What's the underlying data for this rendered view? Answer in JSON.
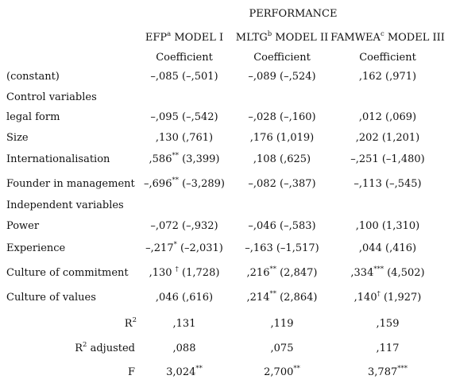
{
  "table": {
    "super_header": "PERFORMANCE",
    "columns": [
      {
        "pre": "EFP",
        "sup": "a",
        "post": " MODEL I",
        "sub": "Coefficient"
      },
      {
        "pre": "MLTG",
        "sup": "b",
        "post": " MODEL II",
        "sub": "Coefficient"
      },
      {
        "pre": "FAMWEA",
        "sup": "c",
        "post": " MODEL III",
        "sub": "Coefficient"
      }
    ],
    "rows": [
      {
        "label": "(constant)",
        "cells": [
          {
            "v": "–,085",
            "s": "",
            "t": " (–,501)"
          },
          {
            "v": "–,089",
            "s": "",
            "t": " (–,524)"
          },
          {
            "v": ",162",
            "s": "",
            "t": " (,971)"
          }
        ]
      },
      {
        "label": "Control variables",
        "cells": []
      },
      {
        "label": "legal form",
        "cells": [
          {
            "v": "–,095",
            "s": "",
            "t": " (–,542)"
          },
          {
            "v": "–,028",
            "s": "",
            "t": " (–,160)"
          },
          {
            "v": ",012",
            "s": "",
            "t": " (,069)"
          }
        ]
      },
      {
        "label": "Size",
        "cells": [
          {
            "v": ",130",
            "s": "",
            "t": " (,761)"
          },
          {
            "v": ",176",
            "s": "",
            "t": " (1,019)"
          },
          {
            "v": ",202",
            "s": "",
            "t": " (1,201)"
          }
        ]
      },
      {
        "label": "Internationalisation",
        "cells": [
          {
            "v": ",586",
            "s": "**",
            "t": " (3,399)"
          },
          {
            "v": ",108",
            "s": "",
            "t": " (,625)"
          },
          {
            "v": "–,251",
            "s": "",
            "t": " (–1,480)"
          }
        ]
      },
      {
        "label": "Founder in management",
        "cells": [
          {
            "v": "–,696",
            "s": "**",
            "t": " (–3,289)"
          },
          {
            "v": "–,082",
            "s": "",
            "t": " (–,387)"
          },
          {
            "v": "–,113",
            "s": "",
            "t": " (–,545)"
          }
        ]
      },
      {
        "label": "Independent variables",
        "cells": []
      },
      {
        "label": "Power",
        "cells": [
          {
            "v": "–,072",
            "s": "",
            "t": " (–,932)"
          },
          {
            "v": "–,046",
            "s": "",
            "t": " (–,583)"
          },
          {
            "v": ",100",
            "s": "",
            "t": " (1,310)"
          }
        ]
      },
      {
        "label": "Experience",
        "cells": [
          {
            "v": "–,217",
            "s": "*",
            "t": " (–2,031)"
          },
          {
            "v": "–,163",
            "s": "",
            "t": " (–1,517)"
          },
          {
            "v": ",044",
            "s": "",
            "t": " (,416)"
          }
        ]
      },
      {
        "label": "Culture of commitment",
        "cells": [
          {
            "v": ",130 ",
            "s": "†",
            "t": " (1,728)"
          },
          {
            "v": ",216",
            "s": "**",
            "t": " (2,847)"
          },
          {
            "v": ",334",
            "s": "***",
            "t": " (4,502)"
          }
        ]
      },
      {
        "label": "Culture of values",
        "cells": [
          {
            "v": ",046",
            "s": "",
            "t": " (,616)"
          },
          {
            "v": ",214",
            "s": "**",
            "t": " (2,864)"
          },
          {
            "v": ",140",
            "s": "†",
            "t": " (1,927)"
          }
        ]
      }
    ],
    "stats": [
      {
        "pre": "R",
        "sup": "2",
        "post": "",
        "cells": [
          {
            "v": ",131",
            "s": ""
          },
          {
            "v": ",119",
            "s": ""
          },
          {
            "v": ",159",
            "s": ""
          }
        ]
      },
      {
        "pre": "R",
        "sup": "2",
        "post": " adjusted",
        "cells": [
          {
            "v": ",088",
            "s": ""
          },
          {
            "v": ",075",
            "s": ""
          },
          {
            "v": ",117",
            "s": ""
          }
        ]
      },
      {
        "pre": "F",
        "sup": "",
        "post": "",
        "cells": [
          {
            "v": "3,024",
            "s": "**"
          },
          {
            "v": "2,700",
            "s": "**"
          },
          {
            "v": "3,787",
            "s": "***"
          }
        ]
      }
    ]
  }
}
